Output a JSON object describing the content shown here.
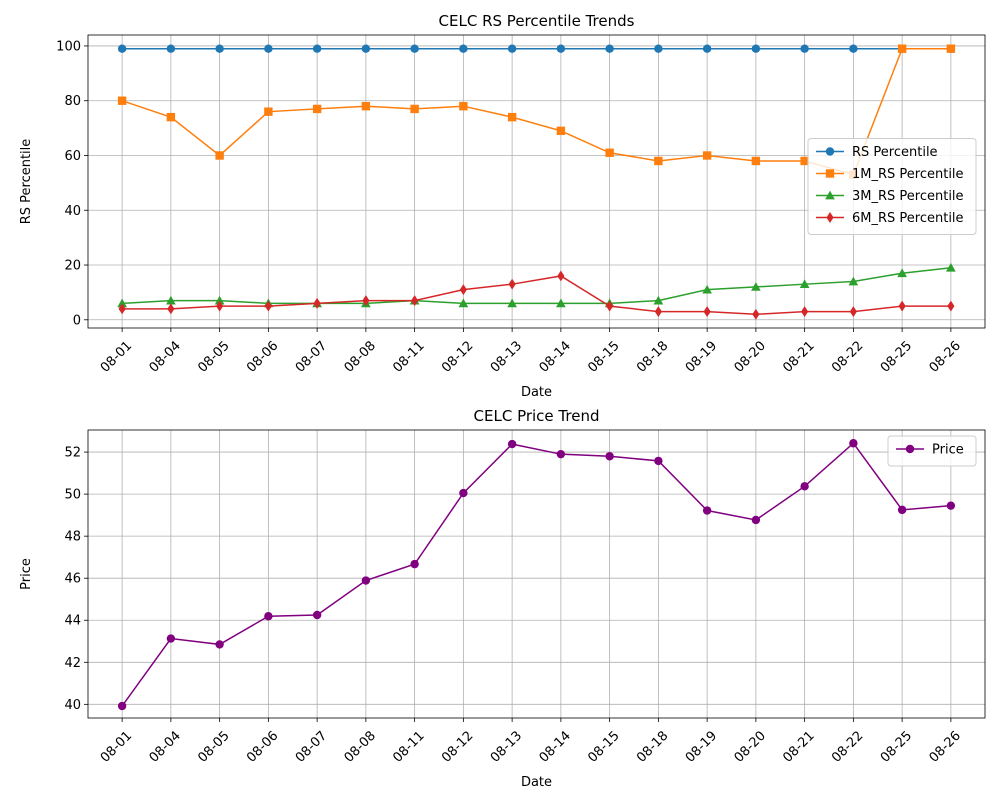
{
  "chart_data": [
    {
      "type": "line",
      "title": "CELC RS Percentile Trends",
      "xlabel": "Date",
      "ylabel": "RS Percentile",
      "categories": [
        "08-01",
        "08-04",
        "08-05",
        "08-06",
        "08-07",
        "08-08",
        "08-11",
        "08-12",
        "08-13",
        "08-14",
        "08-15",
        "08-18",
        "08-19",
        "08-20",
        "08-21",
        "08-22",
        "08-25",
        "08-26"
      ],
      "yticks": [
        0,
        20,
        40,
        60,
        80,
        100
      ],
      "ylim": [
        -3,
        104
      ],
      "grid": true,
      "legend_position": "center-right",
      "series": [
        {
          "name": "RS Percentile",
          "color": "#1f77b4",
          "marker": "circle",
          "values": [
            99,
            99,
            99,
            99,
            99,
            99,
            99,
            99,
            99,
            99,
            99,
            99,
            99,
            99,
            99,
            99,
            99,
            99
          ]
        },
        {
          "name": "1M_RS Percentile",
          "color": "#ff7f0e",
          "marker": "square",
          "values": [
            80,
            74,
            60,
            76,
            77,
            78,
            77,
            78,
            74,
            69,
            61,
            58,
            60,
            58,
            58,
            53,
            99,
            99
          ]
        },
        {
          "name": "3M_RS Percentile",
          "color": "#2ca02c",
          "marker": "triangle",
          "values": [
            6,
            7,
            7,
            6,
            6,
            6,
            7,
            6,
            6,
            6,
            6,
            7,
            11,
            12,
            13,
            14,
            17,
            19
          ]
        },
        {
          "name": "6M_RS Percentile",
          "color": "#d62728",
          "marker": "diamond",
          "values": [
            4,
            4,
            5,
            5,
            6,
            7,
            7,
            11,
            13,
            16,
            5,
            3,
            3,
            2,
            3,
            3,
            5,
            5
          ]
        }
      ]
    },
    {
      "type": "line",
      "title": "CELC Price Trend",
      "xlabel": "Date",
      "ylabel": "Price",
      "categories": [
        "08-01",
        "08-04",
        "08-05",
        "08-06",
        "08-07",
        "08-08",
        "08-11",
        "08-12",
        "08-13",
        "08-14",
        "08-15",
        "08-18",
        "08-19",
        "08-20",
        "08-21",
        "08-22",
        "08-25",
        "08-26"
      ],
      "yticks": [
        40,
        42,
        44,
        46,
        48,
        50,
        52
      ],
      "ylim": [
        39.35,
        53.05
      ],
      "grid": true,
      "legend_position": "upper-right",
      "series": [
        {
          "name": "Price",
          "color": "#800080",
          "marker": "circle",
          "values": [
            39.92,
            43.13,
            42.85,
            44.19,
            44.25,
            45.89,
            46.67,
            50.05,
            52.38,
            51.9,
            51.8,
            51.58,
            49.22,
            48.77,
            50.37,
            52.42,
            49.25,
            49.45
          ]
        }
      ]
    }
  ]
}
